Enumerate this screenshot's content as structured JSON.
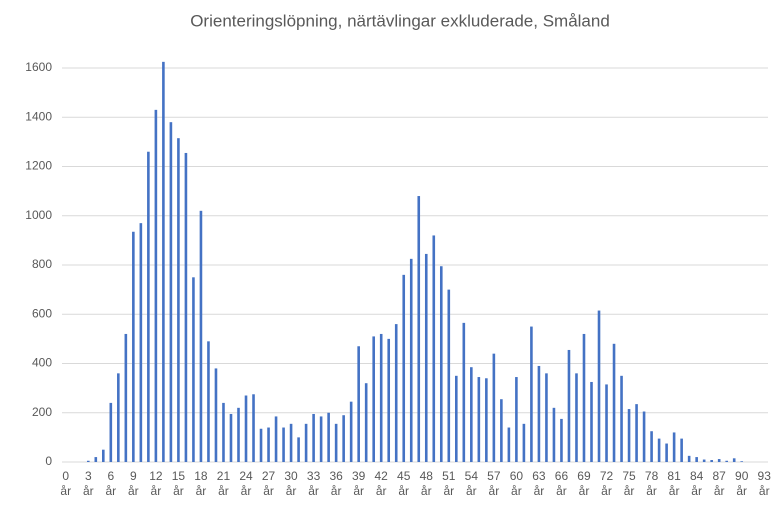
{
  "chart_data": {
    "type": "bar",
    "title": "Orienteringslöpning, närtävlingar exkluderade, Småland",
    "categories": [
      "0 år",
      null,
      null,
      "3 år",
      null,
      null,
      "6 år",
      null,
      null,
      "9 år",
      null,
      null,
      "12 år",
      null,
      null,
      "15 år",
      null,
      null,
      "18 år",
      null,
      null,
      "21 år",
      null,
      null,
      "24 år",
      null,
      null,
      "27 år",
      null,
      null,
      "30 år",
      null,
      null,
      "33 år",
      null,
      null,
      "36 år",
      null,
      null,
      "39 år",
      null,
      null,
      "42 år",
      null,
      null,
      "45 år",
      null,
      null,
      "48 år",
      null,
      null,
      "51 år",
      null,
      null,
      "54 år",
      null,
      null,
      "57 år",
      null,
      null,
      "60 år",
      null,
      null,
      "63 år",
      null,
      null,
      "66 år",
      null,
      null,
      "69 år",
      null,
      null,
      "72 år",
      null,
      null,
      "75 år",
      null,
      null,
      "78 år",
      null,
      null,
      "81 år",
      null,
      null,
      "84 år",
      null,
      null,
      "87 år",
      null,
      null,
      "90 år",
      null,
      null,
      "93 år"
    ],
    "values": [
      0,
      0,
      0,
      5,
      20,
      50,
      240,
      360,
      520,
      935,
      970,
      1260,
      1430,
      1625,
      1380,
      1315,
      1255,
      750,
      1020,
      490,
      380,
      240,
      195,
      220,
      270,
      275,
      135,
      140,
      185,
      140,
      155,
      100,
      155,
      195,
      185,
      200,
      155,
      190,
      245,
      470,
      320,
      510,
      520,
      500,
      560,
      760,
      825,
      1080,
      845,
      920,
      795,
      700,
      350,
      565,
      385,
      345,
      340,
      440,
      255,
      140,
      345,
      155,
      550,
      390,
      360,
      220,
      175,
      455,
      360,
      520,
      325,
      615,
      315,
      480,
      350,
      215,
      235,
      205,
      125,
      95,
      75,
      120,
      95,
      25,
      20,
      10,
      8,
      12,
      5,
      15,
      3,
      0,
      0,
      0
    ],
    "color": "#4472c4",
    "ylim": [
      0,
      1600
    ],
    "yticks": [
      0,
      200,
      400,
      600,
      800,
      1000,
      1200,
      1400,
      1600
    ],
    "grid": true
  }
}
